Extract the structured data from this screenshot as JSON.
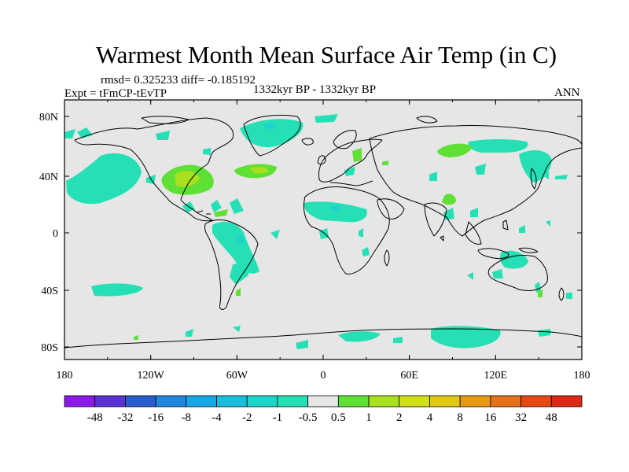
{
  "header": {
    "title": "Warmest Month Mean Surface Air Temp (in C)",
    "stats": "rmsd= 0.325233 diff= -0.185192",
    "experiment": "Expt = tFmCP-tEvTP",
    "period": "1332kyr BP - 1332kyr BP",
    "season": "ANN"
  },
  "axes": {
    "lon_ticks": [
      "180",
      "120W",
      "60W",
      "0",
      "60E",
      "120E",
      "180"
    ],
    "lat_ticks": [
      "80N",
      "40N",
      "0",
      "40S",
      "80S"
    ]
  },
  "colorbar": {
    "labels": [
      "-48",
      "-32",
      "-16",
      "-8",
      "-4",
      "-2",
      "-1",
      "-0.5",
      "0.5",
      "1",
      "2",
      "4",
      "8",
      "16",
      "32",
      "48"
    ],
    "colors": [
      "#8c1ae6",
      "#5a32d2",
      "#2a5ccf",
      "#1f87dc",
      "#19a6e6",
      "#1abedc",
      "#1dd4c8",
      "#24e0b4",
      "#e6e6e6",
      "#5ee034",
      "#a8e01e",
      "#cfe018",
      "#e0c814",
      "#e69a14",
      "#e6701a",
      "#e64814",
      "#dc2814"
    ]
  },
  "map": {
    "background_color": "#e6e6e6",
    "highlighted_regions": [
      "central North America",
      "North Atlantic",
      "Central Asia",
      "Tibetan Plateau"
    ]
  }
}
